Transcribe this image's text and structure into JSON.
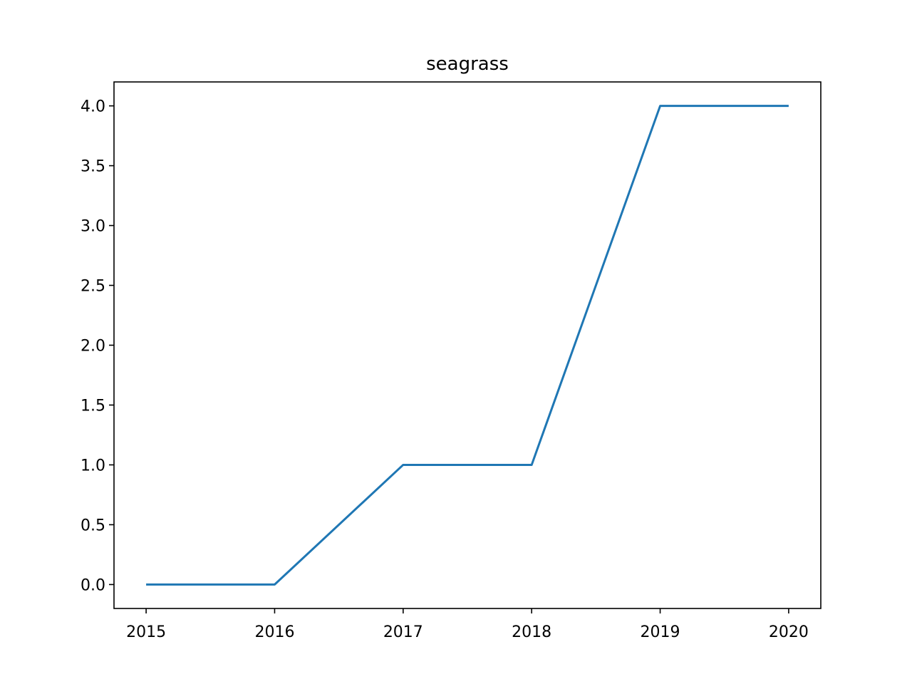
{
  "chart_data": {
    "type": "line",
    "title": "seagrass",
    "xlabel": "",
    "ylabel": "",
    "x": [
      2015,
      2016,
      2017,
      2018,
      2019,
      2020
    ],
    "series": [
      {
        "values": [
          0,
          0,
          1,
          1,
          4,
          4
        ],
        "color": "#1f77b4"
      }
    ],
    "xticks": [
      "2015",
      "2016",
      "2017",
      "2018",
      "2019",
      "2020"
    ],
    "yticks": [
      "0.0",
      "0.5",
      "1.0",
      "1.5",
      "2.0",
      "2.5",
      "3.0",
      "3.5",
      "4.0"
    ],
    "xlim": [
      2014.75,
      2020.25
    ],
    "ylim": [
      -0.2,
      4.2
    ],
    "grid": false,
    "legend": "none"
  }
}
